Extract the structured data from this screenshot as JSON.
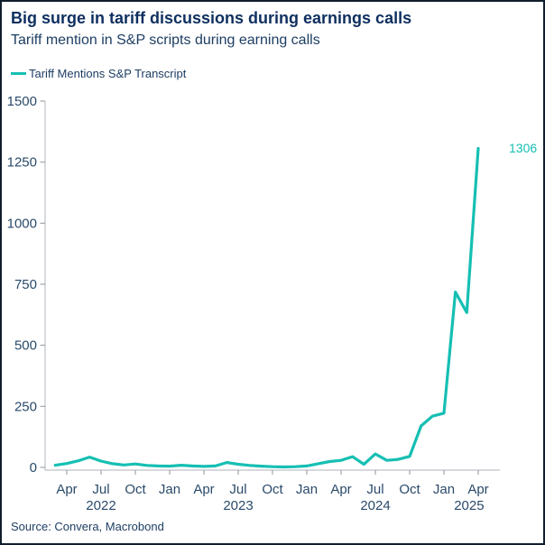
{
  "header": {
    "title": "Big surge in tariff discussions during earnings calls",
    "subtitle": "Tariff mention in S&P scripts during earning calls"
  },
  "legend": {
    "items": [
      {
        "label": "Tariff Mentions S&P Transcript",
        "color": "#16bfb3"
      }
    ]
  },
  "source_note": "Source: Convera, Macrobond",
  "chart_data": {
    "type": "line",
    "title": "Big surge in tariff discussions during earnings calls",
    "subtitle": "Tariff mention in S&P scripts during earning calls",
    "x": [
      "2022-03",
      "2022-04",
      "2022-05",
      "2022-06",
      "2022-07",
      "2022-08",
      "2022-09",
      "2022-10",
      "2022-11",
      "2022-12",
      "2023-01",
      "2023-02",
      "2023-03",
      "2023-04",
      "2023-05",
      "2023-06",
      "2023-07",
      "2023-08",
      "2023-09",
      "2023-10",
      "2023-11",
      "2023-12",
      "2024-01",
      "2024-02",
      "2024-03",
      "2024-04",
      "2024-05",
      "2024-06",
      "2024-07",
      "2024-08",
      "2024-09",
      "2024-10",
      "2024-11",
      "2024-12",
      "2025-01",
      "2025-02",
      "2025-03",
      "2025-04"
    ],
    "series": [
      {
        "name": "Tariff Mentions S&P Transcript",
        "color": "#16bfb3",
        "values": [
          9,
          16,
          27,
          42,
          26,
          15,
          10,
          14,
          8,
          6,
          5,
          9,
          6,
          4,
          6,
          20,
          13,
          8,
          5,
          3,
          2,
          3,
          6,
          15,
          24,
          29,
          44,
          13,
          55,
          29,
          33,
          45,
          170,
          210,
          222,
          718,
          634,
          1306
        ]
      }
    ],
    "end_label": "1306",
    "end_label_value": 1306,
    "y_axis": {
      "ticks": [
        0,
        250,
        500,
        750,
        1000,
        1250,
        1500
      ],
      "range": [
        0,
        1500
      ]
    },
    "x_axis": {
      "ticks": [
        {
          "label": "Apr",
          "month_index": 1
        },
        {
          "label": "Jul",
          "month_index": 4
        },
        {
          "label": "Oct",
          "month_index": 7
        },
        {
          "label": "Jan",
          "month_index": 10
        },
        {
          "label": "Apr",
          "month_index": 13
        },
        {
          "label": "Jul",
          "month_index": 16
        },
        {
          "label": "Oct",
          "month_index": 19
        },
        {
          "label": "Jan",
          "month_index": 22
        },
        {
          "label": "Apr",
          "month_index": 25
        },
        {
          "label": "Jul",
          "month_index": 28
        },
        {
          "label": "Oct",
          "month_index": 31
        },
        {
          "label": "Jan",
          "month_index": 34
        },
        {
          "label": "Apr",
          "month_index": 37
        }
      ],
      "years": [
        {
          "label": "2022",
          "month_index": 4
        },
        {
          "label": "2023",
          "month_index": 16
        },
        {
          "label": "2024",
          "month_index": 28
        },
        {
          "label": "2025",
          "month_index": 36.2
        }
      ]
    },
    "grid": false,
    "legend_position": "top-left",
    "colors": {
      "axis_line": "#c9ccd0",
      "tick": "#8f9499",
      "axis_label": "#2a4a6a"
    }
  }
}
